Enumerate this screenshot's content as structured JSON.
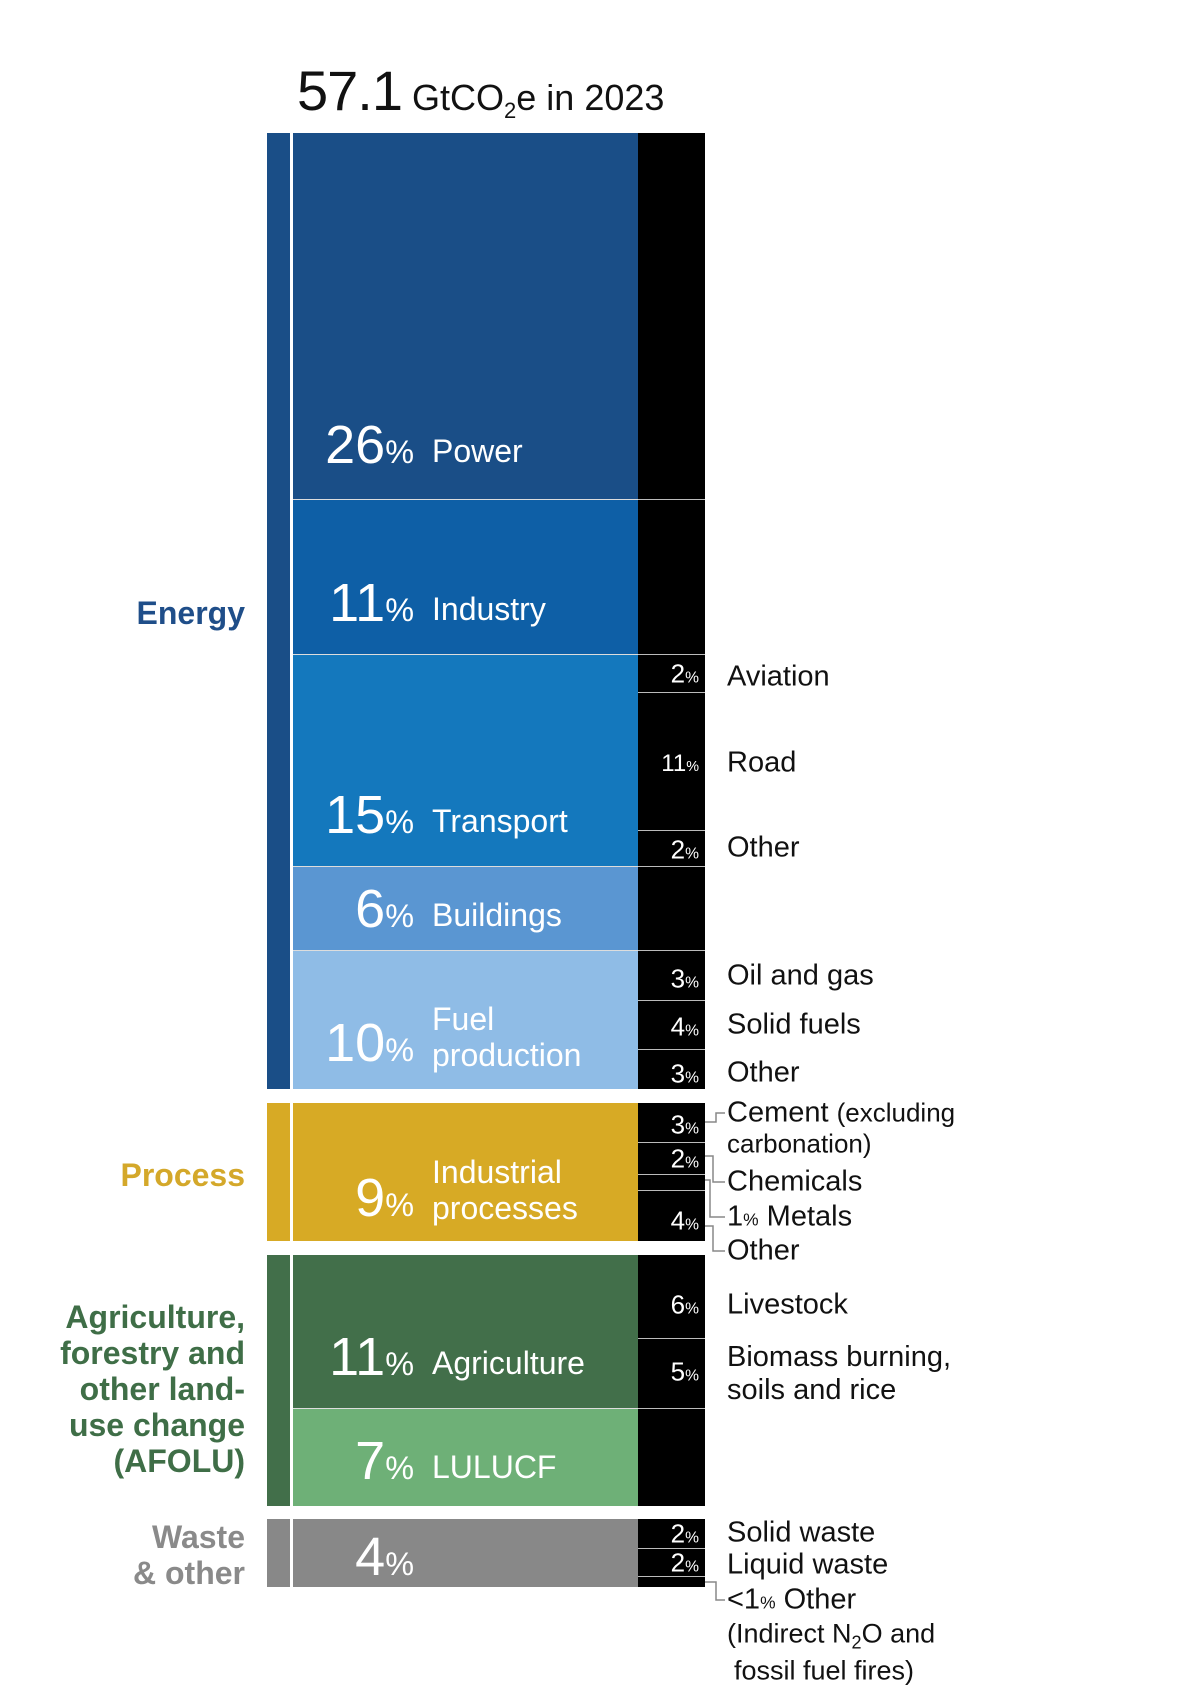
{
  "title": {
    "value": "57.1",
    "unit_pre": "GtCO",
    "unit_sub": "2",
    "unit_post": "e in 2023"
  },
  "chart_data": {
    "type": "bar",
    "stacked": true,
    "total_gtco2e": 57.1,
    "year": 2023,
    "groups": [
      {
        "name": "Energy",
        "color": "#1f4e89",
        "segments": [
          {
            "name": "Power",
            "value": 26,
            "color": "#1a4e87"
          },
          {
            "name": "Industry",
            "value": 11,
            "color": "#0e5fa6"
          },
          {
            "name": "Transport",
            "value": 15,
            "color": "#1478bd",
            "sub": [
              {
                "name": "Aviation",
                "value": "2"
              },
              {
                "name": "Road",
                "value": "11"
              },
              {
                "name": "Other",
                "value": "2"
              }
            ]
          },
          {
            "name": "Buildings",
            "value": 6,
            "color": "#5a96d2"
          },
          {
            "name": "Fuel",
            "name2": "production",
            "value": 10,
            "color": "#8fbce6",
            "sub": [
              {
                "name": "Oil and gas",
                "value": "3"
              },
              {
                "name": "Solid fuels",
                "value": "4"
              },
              {
                "name": "Other",
                "value": "3"
              }
            ]
          }
        ]
      },
      {
        "name": "Process",
        "color": "#d4a82a",
        "segments": [
          {
            "name": "Industrial",
            "name2": "processes",
            "value": 9,
            "color": "#d7aa25",
            "sub": [
              {
                "name": "Cement",
                "note": "(excluding",
                "note2": "carbonation)",
                "value": "3"
              },
              {
                "name": "Chemicals",
                "value": "2"
              },
              {
                "name": "Metals",
                "value": "1"
              },
              {
                "name": "Other",
                "value": "4"
              }
            ]
          }
        ]
      },
      {
        "name": [
          "Agriculture,",
          "forestry and",
          "other land-",
          "use change",
          "(AFOLU)"
        ],
        "color": "#3f6e47",
        "segments": [
          {
            "name": "Agriculture",
            "value": 11,
            "color": "#426f4a",
            "sub": [
              {
                "name": "Livestock",
                "value": "6"
              },
              {
                "name": "Biomass burning,",
                "name2": "soils and rice",
                "value": "5"
              }
            ]
          },
          {
            "name": "LULUCF",
            "value": 7,
            "color": "#6eb077"
          }
        ]
      },
      {
        "name": [
          "Waste",
          "& other"
        ],
        "color": "#8a8a8a",
        "segments": [
          {
            "name": "",
            "value": 4,
            "color": "#888888",
            "sub": [
              {
                "name": "Solid waste",
                "value": "2"
              },
              {
                "name": "Liquid waste",
                "value": "2"
              },
              {
                "name": "Other",
                "prefix": "<1",
                "value": "<1",
                "note": "(Indirect N",
                "note_sub": "2",
                "note_post": "O and",
                "note2": "fossil fuel fires)"
              }
            ]
          }
        ]
      }
    ],
    "unit_symbol": "%"
  }
}
